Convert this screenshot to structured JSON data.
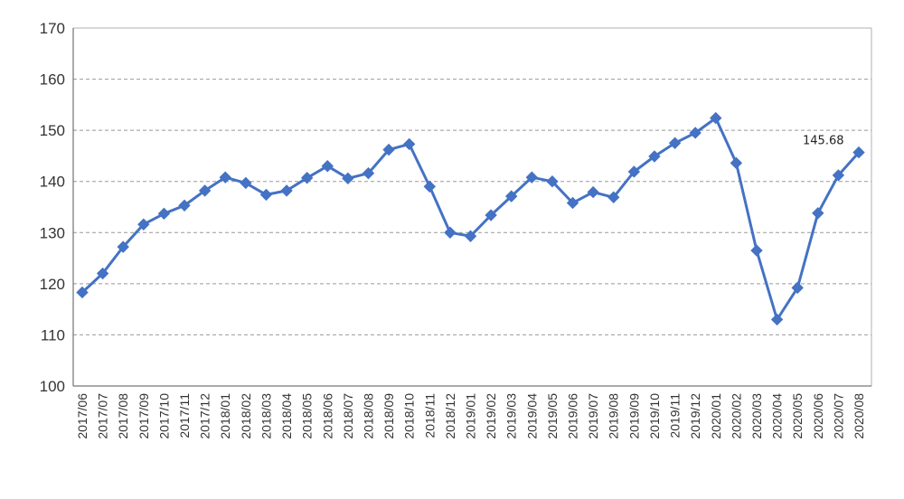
{
  "chart_data": {
    "type": "line",
    "title": "",
    "xlabel": "",
    "ylabel": "",
    "ylim": [
      100,
      170
    ],
    "yticks": [
      "100",
      "110",
      "120",
      "130",
      "140",
      "150",
      "160",
      "170"
    ],
    "grid": true,
    "line_color": "#4472c4",
    "grid_color": "#999999",
    "x": [
      "2017/06",
      "2017/07",
      "2017/08",
      "2017/09",
      "2017/10",
      "2017/11",
      "2017/12",
      "2018/01",
      "2018/02",
      "2018/03",
      "2018/04",
      "2018/05",
      "2018/06",
      "2018/07",
      "2018/08",
      "2018/09",
      "2018/10",
      "2018/11",
      "2018/12",
      "2019/01",
      "2019/02",
      "2019/03",
      "2019/04",
      "2019/05",
      "2019/06",
      "2019/07",
      "2019/08",
      "2019/09",
      "2019/10",
      "2019/11",
      "2019/12",
      "2020/01",
      "2020/02",
      "2020/03",
      "2020/04",
      "2020/05",
      "2020/06",
      "2020/07",
      "2020/08"
    ],
    "series": [
      {
        "values": [
          118.3,
          122.0,
          127.2,
          131.6,
          133.7,
          135.3,
          138.2,
          140.8,
          139.7,
          137.4,
          138.2,
          140.7,
          143.0,
          140.6,
          141.6,
          146.2,
          147.3,
          139.0,
          130.0,
          129.3,
          133.4,
          137.1,
          140.8,
          140.0,
          135.8,
          137.9,
          136.9,
          141.9,
          144.9,
          147.5,
          149.5,
          152.4,
          143.6,
          126.5,
          113.0,
          119.2,
          133.8,
          141.2,
          145.68
        ]
      }
    ],
    "annotations": [
      {
        "text": "145.68",
        "x": "2020/08"
      }
    ]
  }
}
